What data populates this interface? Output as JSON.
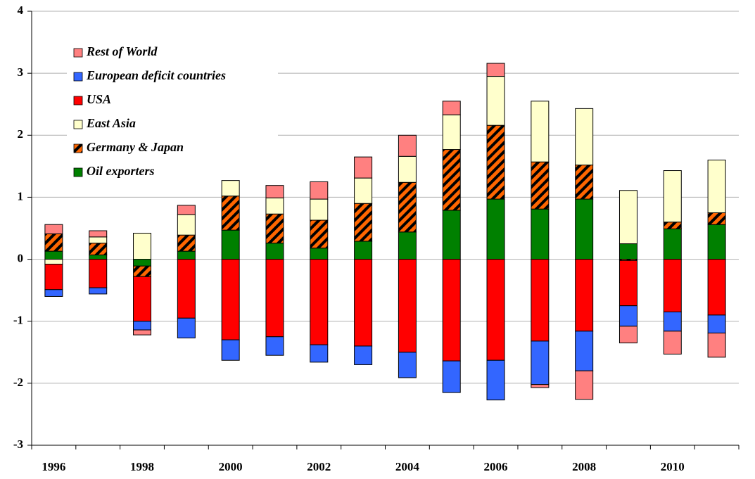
{
  "chart_data": {
    "type": "stacked-bar",
    "categories": [
      "1996",
      null,
      "1998",
      null,
      "2000",
      null,
      "2002",
      null,
      "2004",
      null,
      "2006",
      null,
      "2008",
      null,
      "2010",
      null
    ],
    "series": [
      {
        "name": "Rest of World",
        "color": "#ff8080",
        "values": [
          0.15,
          0.1,
          -0.08,
          0.15,
          0,
          0.2,
          0.28,
          0.34,
          0.34,
          0.22,
          0.21,
          -0.05,
          -0.46,
          -0.27,
          -0.37,
          -0.39
        ]
      },
      {
        "name": "European deficit countries",
        "color": "#3366ff",
        "values": [
          -0.11,
          -0.1,
          -0.14,
          -0.32,
          -0.33,
          -0.3,
          -0.28,
          -0.3,
          -0.41,
          -0.51,
          -0.64,
          -0.7,
          -0.64,
          -0.33,
          -0.31,
          -0.29
        ]
      },
      {
        "name": "USA",
        "color": "#ff0000",
        "values": [
          -0.41,
          -0.46,
          -0.72,
          -0.95,
          -1.3,
          -1.25,
          -1.38,
          -1.4,
          -1.5,
          -1.64,
          -1.63,
          -1.32,
          -1.16,
          -0.73,
          -0.85,
          -0.9
        ]
      },
      {
        "name": "East Asia",
        "color": "#ffffcc",
        "values": [
          -0.08,
          0.1,
          0.42,
          0.33,
          0.25,
          0.26,
          0.34,
          0.41,
          0.42,
          0.56,
          0.79,
          0.98,
          0.91,
          0.86,
          0.83,
          0.85
        ]
      },
      {
        "name": "Germany & Japan",
        "color": "#ff6600",
        "pattern": "diagonal",
        "values": [
          0.28,
          0.19,
          -0.17,
          0.26,
          0.55,
          0.47,
          0.45,
          0.61,
          0.8,
          0.98,
          1.19,
          0.76,
          0.55,
          -0.02,
          0.11,
          0.19
        ]
      },
      {
        "name": "Oil exporters",
        "color": "#008000",
        "values": [
          0.13,
          0.07,
          -0.11,
          0.13,
          0.47,
          0.26,
          0.18,
          0.29,
          0.44,
          0.79,
          0.97,
          0.81,
          0.97,
          0.25,
          0.49,
          0.56
        ]
      }
    ],
    "ylim": [
      -3,
      4
    ],
    "yticks": [
      -3,
      -2,
      -1,
      0,
      1,
      2,
      3,
      4
    ],
    "grid": true,
    "legend": "upper-left"
  }
}
